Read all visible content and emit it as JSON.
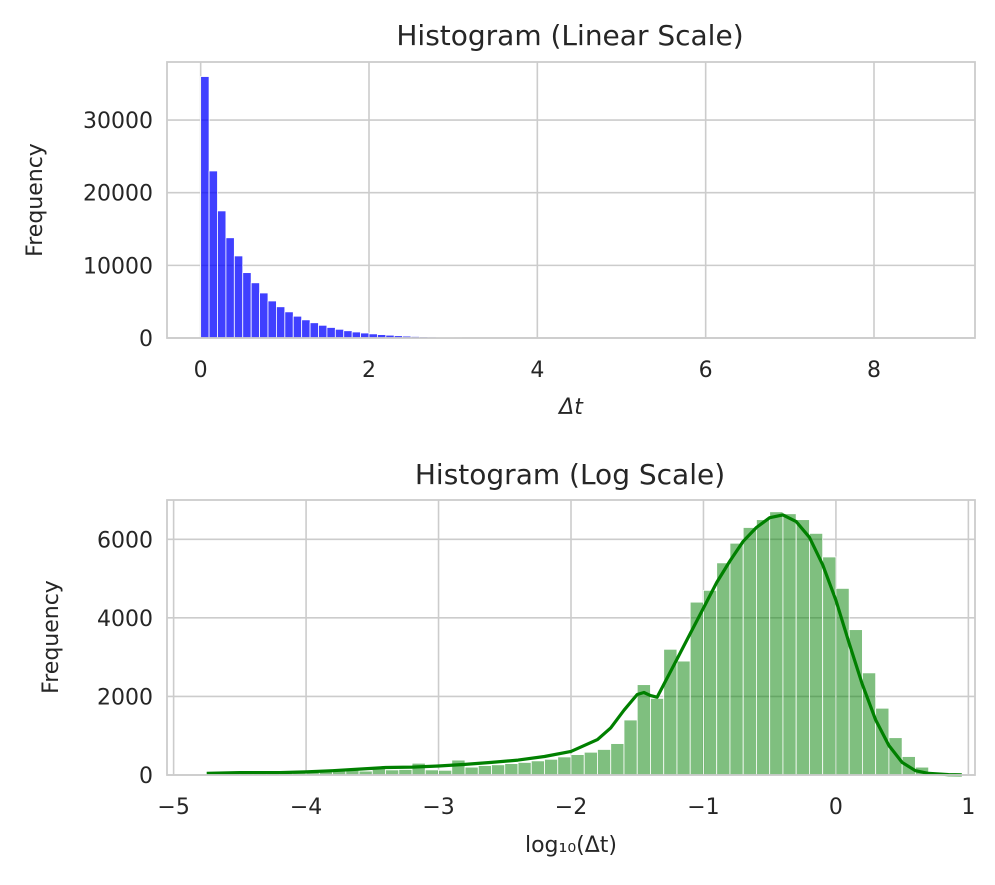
{
  "chart_data": [
    {
      "type": "bar",
      "title": "Histogram (Linear Scale)",
      "xlabel": "Δt",
      "ylabel": "Frequency",
      "xlim": [
        -0.4,
        9.2
      ],
      "ylim": [
        0,
        38000
      ],
      "xticks": [
        0,
        2,
        4,
        6,
        8
      ],
      "yticks": [
        0,
        10000,
        20000,
        30000
      ],
      "grid": true,
      "color": "#0000ff",
      "bin_width": 0.1,
      "bins_start": [
        0.0,
        0.1,
        0.2,
        0.3,
        0.4,
        0.5,
        0.6,
        0.7,
        0.8,
        0.9,
        1.0,
        1.1,
        1.2,
        1.3,
        1.4,
        1.5,
        1.6,
        1.7,
        1.8,
        1.9,
        2.0,
        2.1,
        2.2,
        2.3,
        2.4,
        2.5,
        2.6,
        2.7,
        2.8,
        2.9,
        3.0
      ],
      "values": [
        36000,
        23000,
        17500,
        13800,
        11300,
        9000,
        7600,
        6200,
        5100,
        4300,
        3600,
        3000,
        2500,
        2100,
        1750,
        1450,
        1200,
        1000,
        830,
        690,
        570,
        470,
        390,
        320,
        260,
        210,
        170,
        140,
        110,
        90,
        70
      ]
    },
    {
      "type": "bar",
      "title": "Histogram (Log Scale)",
      "xlabel": "log₁₀(Δt)",
      "ylabel": "Frequency",
      "xlim": [
        -5.05,
        1.05
      ],
      "ylim": [
        0,
        7000
      ],
      "xticks": [
        -5,
        -4,
        -3,
        -2,
        -1,
        0,
        1
      ],
      "yticks": [
        0,
        2000,
        4000,
        6000
      ],
      "grid": true,
      "color": "#008000",
      "bin_width": 0.1,
      "bins_start": [
        -4.7,
        -4.6,
        -4.5,
        -4.4,
        -4.3,
        -4.2,
        -4.1,
        -4.0,
        -3.9,
        -3.8,
        -3.7,
        -3.6,
        -3.5,
        -3.4,
        -3.3,
        -3.2,
        -3.1,
        -3.0,
        -2.9,
        -2.8,
        -2.7,
        -2.6,
        -2.5,
        -2.4,
        -2.3,
        -2.2,
        -2.1,
        -2.0,
        -1.9,
        -1.8,
        -1.7,
        -1.6,
        -1.5,
        -1.4,
        -1.3,
        -1.2,
        -1.1,
        -1.0,
        -0.9,
        -0.8,
        -0.7,
        -0.6,
        -0.5,
        -0.4,
        -0.3,
        -0.2,
        -0.1,
        0.0,
        0.1,
        0.2,
        0.3,
        0.4,
        0.5,
        0.6,
        0.7,
        0.8
      ],
      "values": [
        30,
        50,
        40,
        40,
        50,
        60,
        60,
        70,
        90,
        100,
        120,
        100,
        170,
        130,
        140,
        300,
        130,
        120,
        380,
        200,
        240,
        260,
        290,
        320,
        360,
        400,
        460,
        520,
        580,
        650,
        800,
        1400,
        2300,
        1950,
        3200,
        2900,
        4400,
        4700,
        5400,
        5900,
        6300,
        6500,
        6700,
        6650,
        6500,
        6150,
        5550,
        4750,
        3700,
        2600,
        1700,
        950,
        470,
        200,
        70,
        20
      ],
      "kde": {
        "x": [
          -4.75,
          -4.5,
          -4.2,
          -4.0,
          -3.8,
          -3.6,
          -3.4,
          -3.2,
          -3.0,
          -2.8,
          -2.6,
          -2.4,
          -2.2,
          -2.0,
          -1.8,
          -1.7,
          -1.6,
          -1.5,
          -1.45,
          -1.4,
          -1.35,
          -1.3,
          -1.2,
          -1.1,
          -1.0,
          -0.9,
          -0.8,
          -0.7,
          -0.6,
          -0.5,
          -0.4,
          -0.3,
          -0.2,
          -0.1,
          0.0,
          0.1,
          0.2,
          0.3,
          0.4,
          0.5,
          0.6,
          0.7,
          0.85,
          0.95
        ],
        "y": [
          40,
          60,
          60,
          80,
          110,
          150,
          190,
          200,
          230,
          270,
          320,
          380,
          470,
          600,
          900,
          1200,
          1650,
          2050,
          2100,
          2020,
          1980,
          2300,
          2950,
          3600,
          4250,
          4900,
          5450,
          5950,
          6300,
          6550,
          6620,
          6450,
          6050,
          5350,
          4450,
          3350,
          2300,
          1400,
          750,
          320,
          110,
          40,
          10,
          5
        ]
      }
    }
  ]
}
